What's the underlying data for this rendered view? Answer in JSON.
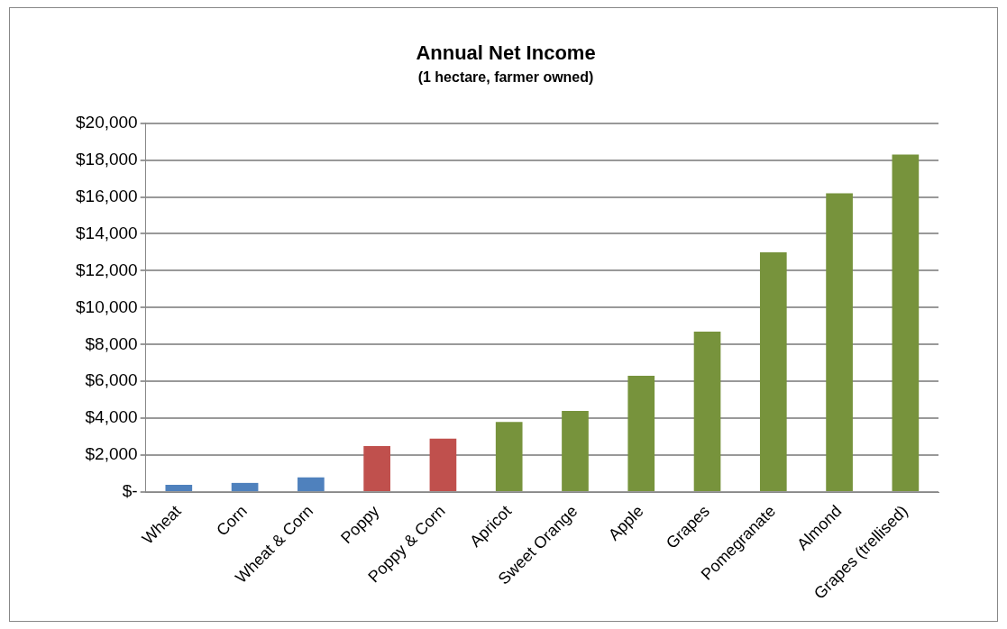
{
  "chart_data": {
    "type": "bar",
    "title": "Annual Net Income",
    "subtitle": "(1 hectare, farmer owned)",
    "categories": [
      "Wheat",
      "Corn",
      "Wheat & Corn",
      "Poppy",
      "Poppy & Corn",
      "Apricot",
      "Sweet Orange",
      "Apple",
      "Grapes",
      "Pomegranate",
      "Almond",
      "Grapes (trellised)"
    ],
    "values": [
      400,
      500,
      800,
      2500,
      2900,
      3800,
      4400,
      6300,
      8700,
      13000,
      16200,
      18300
    ],
    "colors": [
      "#4f81bd",
      "#4f81bd",
      "#4f81bd",
      "#c0504d",
      "#c0504d",
      "#77933c",
      "#77933c",
      "#77933c",
      "#77933c",
      "#77933c",
      "#77933c",
      "#77933c"
    ],
    "ylim": [
      0,
      20000
    ],
    "yticks": [
      {
        "value": 0,
        "label": "$-"
      },
      {
        "value": 2000,
        "label": "$2,000"
      },
      {
        "value": 4000,
        "label": "$4,000"
      },
      {
        "value": 6000,
        "label": "$6,000"
      },
      {
        "value": 8000,
        "label": "$8,000"
      },
      {
        "value": 10000,
        "label": "$10,000"
      },
      {
        "value": 12000,
        "label": "$12,000"
      },
      {
        "value": 14000,
        "label": "$14,000"
      },
      {
        "value": 16000,
        "label": "$16,000"
      },
      {
        "value": 18000,
        "label": "$18,000"
      },
      {
        "value": 20000,
        "label": "$20,000"
      }
    ],
    "grid": "y",
    "legend": false
  }
}
